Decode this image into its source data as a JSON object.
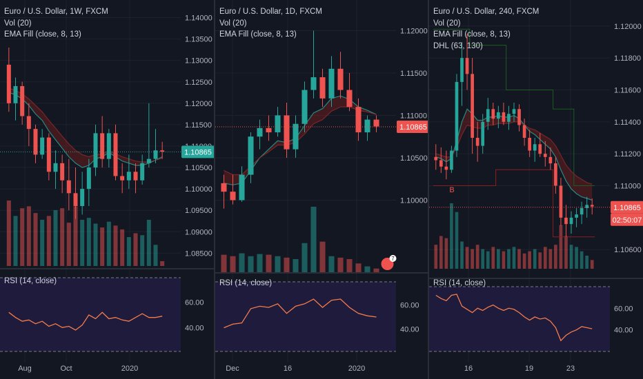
{
  "colors": {
    "background": "#131722",
    "grid": "#1e222d",
    "up": "#26a69a",
    "down": "#ef5350",
    "ema": "#26a69a",
    "price_line": "#ef5350",
    "rsi_line": "#f57c4a",
    "rsi_band": "#1f1b3c",
    "axis_text": "#b2b5be",
    "price_label_teal": "#26a69a",
    "price_label_red": "#ef5350",
    "dhl": "#1b5e20"
  },
  "panels": [
    {
      "id": "weekly",
      "symbol": "Euro / U.S. Dollar, 1W, FXCM",
      "indicators": [
        "Vol (20)",
        "EMA Fill (close, 8, 13)"
      ],
      "rsi_label": "RSI (14, close)",
      "current_price": "1.10865",
      "price_label_color": "teal",
      "chart_data": {
        "type": "candlestick",
        "title": "Euro / U.S. Dollar, 1W, FXCM",
        "ylim": [
          1.082,
          1.1425
        ],
        "y_ticks": [
          "1.14000",
          "1.13500",
          "1.13000",
          "1.12500",
          "1.12000",
          "1.11500",
          "1.11000",
          "1.10500",
          "1.10000",
          "1.09500",
          "1.09000",
          "1.08500"
        ],
        "x_ticks": [
          "Aug",
          "Oct",
          "2020"
        ],
        "ohlc": [
          [
            1.129,
            1.133,
            1.118,
            1.12
          ],
          [
            1.12,
            1.126,
            1.116,
            1.124
          ],
          [
            1.124,
            1.125,
            1.115,
            1.117
          ],
          [
            1.117,
            1.12,
            1.11,
            1.114
          ],
          [
            1.114,
            1.115,
            1.106,
            1.108
          ],
          [
            1.108,
            1.114,
            1.107,
            1.112
          ],
          [
            1.112,
            1.113,
            1.102,
            1.104
          ],
          [
            1.104,
            1.109,
            1.1,
            1.106
          ],
          [
            1.106,
            1.108,
            1.099,
            1.102
          ],
          [
            1.102,
            1.107,
            1.095,
            1.099
          ],
          [
            1.099,
            1.105,
            1.093,
            1.096
          ],
          [
            1.096,
            1.104,
            1.094,
            1.1
          ],
          [
            1.1,
            1.107,
            1.096,
            1.105
          ],
          [
            1.105,
            1.115,
            1.103,
            1.113
          ],
          [
            1.113,
            1.117,
            1.105,
            1.107
          ],
          [
            1.107,
            1.114,
            1.105,
            1.113
          ],
          [
            1.113,
            1.115,
            1.102,
            1.103
          ],
          [
            1.103,
            1.106,
            1.099,
            1.102
          ],
          [
            1.102,
            1.108,
            1.1,
            1.104
          ],
          [
            1.104,
            1.106,
            1.099,
            1.102
          ],
          [
            1.102,
            1.108,
            1.101,
            1.106
          ],
          [
            1.106,
            1.12,
            1.105,
            1.107
          ],
          [
            1.107,
            1.114,
            1.106,
            1.109
          ],
          [
            1.109,
            1.111,
            1.107,
            1.1087
          ]
        ],
        "volume": [
          68,
          52,
          60,
          62,
          55,
          48,
          52,
          58,
          60,
          45,
          62,
          48,
          50,
          44,
          40,
          46,
          42,
          38,
          30,
          34,
          32,
          48,
          22,
          5
        ],
        "ema_fast": [
          1.1225,
          1.122,
          1.121,
          1.1195,
          1.1175,
          1.116,
          1.1135,
          1.1115,
          1.1095,
          1.1075,
          1.106,
          1.105,
          1.1055,
          1.107,
          1.1075,
          1.1085,
          1.1075,
          1.1065,
          1.106,
          1.1055,
          1.1055,
          1.106,
          1.1067,
          1.1075
        ],
        "ema_slow": [
          1.1235,
          1.123,
          1.1222,
          1.121,
          1.1195,
          1.118,
          1.116,
          1.1142,
          1.1123,
          1.1105,
          1.109,
          1.108,
          1.1075,
          1.108,
          1.1082,
          1.1088,
          1.1082,
          1.1075,
          1.107,
          1.1065,
          1.1063,
          1.1063,
          1.1067,
          1.1072
        ],
        "rsi": [
          52,
          48,
          45,
          46,
          43,
          45,
          41,
          43,
          40,
          41,
          38,
          42,
          50,
          47,
          52,
          47,
          48,
          46,
          45,
          48,
          51,
          48,
          48,
          49
        ],
        "rsi_ylim": [
          20,
          80
        ],
        "rsi_ticks": [
          "60.00",
          "40.00"
        ]
      }
    },
    {
      "id": "daily",
      "symbol": "Euro / U.S. Dollar, 1D, FXCM",
      "indicators": [
        "Vol (20)",
        "EMA Fill (close, 8, 13)"
      ],
      "rsi_label": "RSI (14, close)",
      "current_price": "1.10865",
      "price_label_color": "red",
      "badge": "7",
      "chart_data": {
        "type": "candlestick",
        "title": "Euro / U.S. Dollar, 1D, FXCM",
        "ylim": [
          1.0915,
          1.1228
        ],
        "y_ticks": [
          "1.12000",
          "1.11500",
          "1.11000",
          "1.10500",
          "1.10000"
        ],
        "x_ticks": [
          "Dec",
          "16",
          "2020"
        ],
        "ohlc": [
          [
            1.102,
            1.103,
            1.099,
            1.101
          ],
          [
            1.101,
            1.103,
            1.0995,
            1.1
          ],
          [
            1.1,
            1.104,
            1.0998,
            1.103
          ],
          [
            1.103,
            1.108,
            1.102,
            1.1075
          ],
          [
            1.1075,
            1.1095,
            1.106,
            1.1085
          ],
          [
            1.1085,
            1.11,
            1.107,
            1.108
          ],
          [
            1.108,
            1.111,
            1.1075,
            1.11
          ],
          [
            1.11,
            1.1115,
            1.105,
            1.106
          ],
          [
            1.106,
            1.11,
            1.105,
            1.109
          ],
          [
            1.109,
            1.114,
            1.108,
            1.113
          ],
          [
            1.113,
            1.12,
            1.112,
            1.1145
          ],
          [
            1.1145,
            1.1155,
            1.111,
            1.112
          ],
          [
            1.112,
            1.117,
            1.111,
            1.1155
          ],
          [
            1.1155,
            1.1175,
            1.112,
            1.113
          ],
          [
            1.113,
            1.115,
            1.1105,
            1.111
          ],
          [
            1.111,
            1.112,
            1.107,
            1.108
          ],
          [
            1.108,
            1.11,
            1.107,
            1.1095
          ],
          [
            1.1095,
            1.11,
            1.108,
            1.1087
          ]
        ],
        "volume": [
          24,
          22,
          26,
          22,
          25,
          24,
          22,
          20,
          18,
          40,
          90,
          42,
          22,
          20,
          18,
          12,
          8,
          5
        ],
        "ema_fast": [
          1.102,
          1.1018,
          1.102,
          1.1035,
          1.105,
          1.106,
          1.107,
          1.1068,
          1.1073,
          1.1088,
          1.1103,
          1.1108,
          1.112,
          1.1123,
          1.1119,
          1.111,
          1.1106,
          1.1101
        ],
        "ema_slow": [
          1.1035,
          1.103,
          1.103,
          1.104,
          1.105,
          1.1057,
          1.1065,
          1.1065,
          1.1068,
          1.1078,
          1.109,
          1.1095,
          1.1105,
          1.111,
          1.111,
          1.1106,
          1.1104,
          1.1101
        ],
        "rsi": [
          41,
          44,
          45,
          57,
          59,
          58,
          61,
          53,
          59,
          61,
          65,
          58,
          64,
          65,
          58,
          53,
          51,
          50
        ],
        "rsi_ylim": [
          20,
          80
        ],
        "rsi_ticks": [
          "60.00",
          "40.00"
        ]
      }
    },
    {
      "id": "4h",
      "symbol": "Euro / U.S. Dollar, 240, FXCM",
      "indicators": [
        "Vol (20)",
        "EMA Fill (close, 8, 13)",
        "DHL (63, 130)"
      ],
      "rsi_label": "RSI (14, close)",
      "current_price": "1.10865",
      "countdown": "02:50:07",
      "price_label_color": "red",
      "marker_label": "B",
      "chart_data": {
        "type": "candlestick",
        "title": "Euro / U.S. Dollar, 240, FXCM",
        "ylim": [
          1.1048,
          1.1212
        ],
        "y_ticks": [
          "1.12000",
          "1.11800",
          "1.11600",
          "1.11400",
          "1.11200",
          "1.11000",
          "1.10600"
        ],
        "x_ticks": [
          "16",
          "19",
          "23"
        ],
        "ohlc": [
          [
            1.1118,
            1.1126,
            1.111,
            1.1116
          ],
          [
            1.1116,
            1.1124,
            1.1108,
            1.1112
          ],
          [
            1.1112,
            1.1122,
            1.1104,
            1.111
          ],
          [
            1.111,
            1.1125,
            1.1108,
            1.1122
          ],
          [
            1.1122,
            1.117,
            1.1118,
            1.1165
          ],
          [
            1.1165,
            1.119,
            1.115,
            1.118
          ],
          [
            1.118,
            1.1195,
            1.116,
            1.117
          ],
          [
            1.117,
            1.118,
            1.112,
            1.113
          ],
          [
            1.113,
            1.114,
            1.1115,
            1.1125
          ],
          [
            1.1125,
            1.1145,
            1.112,
            1.114
          ],
          [
            1.114,
            1.1155,
            1.1135,
            1.1148
          ],
          [
            1.1148,
            1.1152,
            1.1138,
            1.1142
          ],
          [
            1.1142,
            1.115,
            1.1136,
            1.1146
          ],
          [
            1.1146,
            1.1152,
            1.1138,
            1.114
          ],
          [
            1.114,
            1.115,
            1.1135,
            1.1145
          ],
          [
            1.1145,
            1.1152,
            1.114,
            1.1148
          ],
          [
            1.1148,
            1.1151,
            1.1134,
            1.1138
          ],
          [
            1.1138,
            1.1142,
            1.1125,
            1.113
          ],
          [
            1.113,
            1.1135,
            1.1118,
            1.1122
          ],
          [
            1.1122,
            1.113,
            1.1115,
            1.1126
          ],
          [
            1.1126,
            1.1133,
            1.1118,
            1.112
          ],
          [
            1.112,
            1.1128,
            1.1112,
            1.1118
          ],
          [
            1.1118,
            1.1124,
            1.111,
            1.1114
          ],
          [
            1.1114,
            1.1118,
            1.1095,
            1.11
          ],
          [
            1.11,
            1.1105,
            1.1075,
            1.108
          ],
          [
            1.108,
            1.1088,
            1.1068,
            1.1076
          ],
          [
            1.1076,
            1.1084,
            1.107,
            1.108
          ],
          [
            1.108,
            1.1086,
            1.1074,
            1.1082
          ],
          [
            1.1082,
            1.109,
            1.1076,
            1.1086
          ],
          [
            1.1086,
            1.1093,
            1.108,
            1.1088
          ],
          [
            1.1088,
            1.1092,
            1.1082,
            1.1087
          ]
        ],
        "volume": [
          22,
          30,
          28,
          60,
          52,
          25,
          20,
          18,
          22,
          18,
          16,
          20,
          18,
          16,
          18,
          20,
          18,
          14,
          16,
          18,
          15,
          20,
          18,
          22,
          40,
          30,
          22,
          20,
          16,
          12,
          8
        ],
        "ema_fast": [
          1.1118,
          1.1117,
          1.1115,
          1.1117,
          1.1128,
          1.114,
          1.1148,
          1.1145,
          1.1141,
          1.1141,
          1.1143,
          1.1143,
          1.1144,
          1.1143,
          1.1143,
          1.1144,
          1.1142,
          1.1138,
          1.1134,
          1.1132,
          1.1129,
          1.1126,
          1.1123,
          1.1118,
          1.111,
          1.1103,
          1.1098,
          1.1095,
          1.1093,
          1.1092,
          1.1091
        ],
        "ema_slow": [
          1.112,
          1.1119,
          1.1118,
          1.1118,
          1.1124,
          1.1132,
          1.1138,
          1.1137,
          1.1136,
          1.1136,
          1.1138,
          1.1138,
          1.1139,
          1.1139,
          1.1139,
          1.114,
          1.114,
          1.1138,
          1.1136,
          1.1135,
          1.1133,
          1.1131,
          1.1129,
          1.1125,
          1.1119,
          1.1113,
          1.1109,
          1.1106,
          1.1104,
          1.1102,
          1.1101
        ],
        "dhl_high": [
          1.1198,
          1.1198,
          1.1198,
          1.1198,
          1.1198,
          1.1198,
          1.1198,
          1.1188,
          1.1188,
          1.1188,
          1.1188,
          1.1188,
          1.1188,
          1.1188,
          1.116,
          1.116,
          1.116,
          1.116,
          1.116,
          1.116,
          1.116,
          1.116,
          1.116,
          1.1148,
          1.1148,
          1.1148,
          1.1148,
          1.11,
          1.11,
          1.11,
          1.11
        ],
        "dhl_low": [
          1.11,
          1.11,
          1.11,
          1.11,
          1.11,
          1.11,
          1.11,
          1.11,
          1.11,
          1.11,
          1.11,
          1.11,
          1.111,
          1.111,
          1.111,
          1.111,
          1.111,
          1.111,
          1.111,
          1.111,
          1.111,
          1.111,
          1.111,
          1.1068,
          1.1068,
          1.1068,
          1.1068,
          1.1068,
          1.1068,
          1.1068,
          1.1068
        ],
        "rsi": [
          72,
          69,
          67,
          72,
          73,
          62,
          59,
          56,
          60,
          58,
          61,
          63,
          60,
          58,
          60,
          59,
          56,
          52,
          49,
          52,
          50,
          51,
          48,
          42,
          30,
          35,
          38,
          40,
          43,
          42,
          41
        ],
        "rsi_ylim": [
          20,
          80
        ],
        "rsi_ticks": [
          "60.00",
          "40.00"
        ]
      }
    }
  ]
}
